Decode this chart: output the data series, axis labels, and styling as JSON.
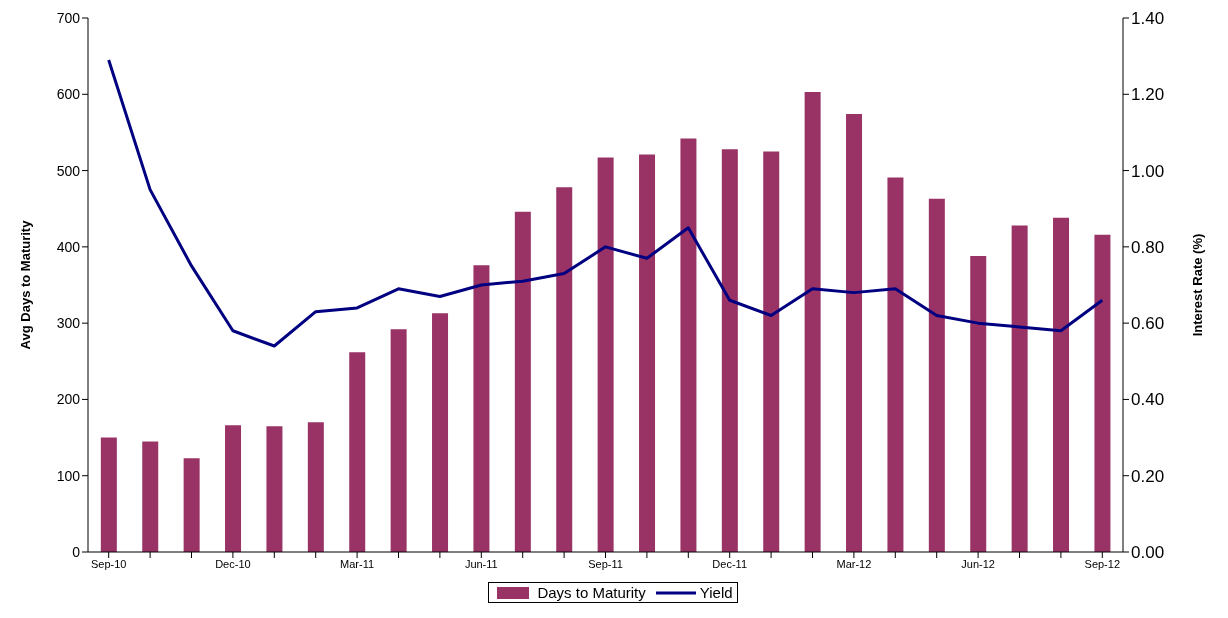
{
  "chart_data": {
    "type": "bar",
    "ylabel": "Avg Days to Maturity",
    "y2label": "Interest Rate (%)",
    "categories": [
      "Sep-10",
      null,
      null,
      "Dec-10",
      null,
      null,
      "Mar-11",
      null,
      null,
      "Jun-11",
      null,
      null,
      "Sep-11",
      null,
      null,
      "Dec-11",
      null,
      null,
      "Mar-12",
      null,
      null,
      "Jun-12",
      null,
      null,
      "Sep-12"
    ],
    "series": [
      {
        "name": "Days to Maturity",
        "color": "#993366",
        "values": [
          150,
          145,
          123,
          166,
          165,
          170,
          262,
          292,
          313,
          376,
          446,
          478,
          517,
          521,
          542,
          528,
          525,
          603,
          574,
          491,
          463,
          388,
          428,
          438,
          416
        ]
      },
      {
        "name": "Yield",
        "type": "line",
        "axis": "y2",
        "color": "#000080",
        "values": [
          1.29,
          0.95,
          0.75,
          0.58,
          0.54,
          0.63,
          0.64,
          0.69,
          0.67,
          0.7,
          0.71,
          0.73,
          0.8,
          0.77,
          0.85,
          0.66,
          0.62,
          0.69,
          0.68,
          0.69,
          0.62,
          0.6,
          0.59,
          0.58,
          0.66
        ]
      }
    ],
    "ylim": [
      0,
      700
    ],
    "yticks": [
      0,
      100,
      200,
      300,
      400,
      500,
      600,
      700
    ],
    "y2lim": [
      0,
      1.4
    ],
    "y2ticks": [
      {
        "value": 0,
        "label": "0.00"
      },
      {
        "value": 0.2,
        "label": "0.20"
      },
      {
        "value": 0.4,
        "label": "0.40"
      },
      {
        "value": 0.6,
        "label": "0.60"
      },
      {
        "value": 0.8,
        "label": "0.80"
      },
      {
        "value": 1,
        "label": "1.00"
      },
      {
        "value": 1.2,
        "label": "1.20"
      },
      {
        "value": 1.4,
        "label": "1.40"
      }
    ],
    "legend": "bottom",
    "grid": false,
    "marker": "none",
    "line_style": "solid"
  }
}
